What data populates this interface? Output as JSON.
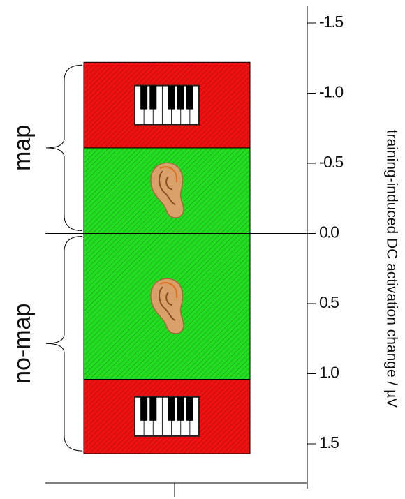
{
  "chart_data": {
    "type": "stacked-bar",
    "y_label": "training-induced DC activation change / µV",
    "categories": [
      "map",
      "no-map"
    ],
    "series": [
      {
        "color": "#22dd22",
        "values": [
          -0.61,
          1.04
        ]
      },
      {
        "color": "#ee1111",
        "values": [
          -0.61,
          0.53
        ]
      }
    ],
    "ylim": [
      -1.5,
      1.5
    ],
    "y_inverted": true,
    "yticks": [
      -1.5,
      {
        "value": -1,
        "label": "-1.0"
      },
      -0.5,
      {
        "value": 0,
        "label": "0.0"
      },
      0.5,
      {
        "value": 1,
        "label": "1.0"
      },
      1.5
    ]
  }
}
